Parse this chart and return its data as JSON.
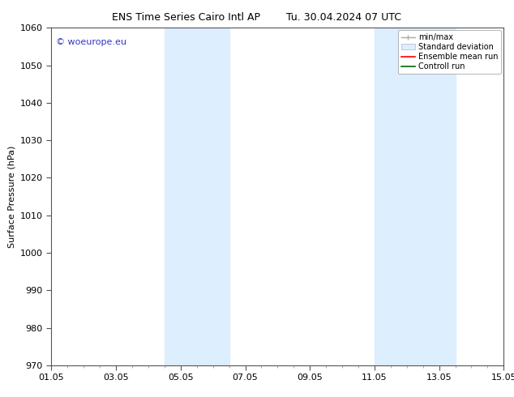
{
  "title_left": "ENS Time Series Cairo Intl AP",
  "title_right": "Tu. 30.04.2024 07 UTC",
  "ylabel": "Surface Pressure (hPa)",
  "ylim": [
    970,
    1060
  ],
  "yticks": [
    970,
    980,
    990,
    1000,
    1010,
    1020,
    1030,
    1040,
    1050,
    1060
  ],
  "xtick_labels": [
    "01.05",
    "03.05",
    "05.05",
    "07.05",
    "09.05",
    "11.05",
    "13.05",
    "15.05"
  ],
  "xtick_positions": [
    0,
    2,
    4,
    6,
    8,
    10,
    12,
    14
  ],
  "x_min": 0,
  "x_max": 14,
  "shaded_bands": [
    {
      "x_start": 3.5,
      "x_end": 5.5,
      "color": "#ddeeff"
    },
    {
      "x_start": 10.0,
      "x_end": 12.5,
      "color": "#ddeeff"
    }
  ],
  "watermark": "© woeurope.eu",
  "watermark_color": "#3333cc",
  "bg_color": "#ffffff",
  "plot_bg_color": "#ffffff",
  "font_size": 8,
  "title_font_size": 9,
  "legend_fontsize": 7
}
